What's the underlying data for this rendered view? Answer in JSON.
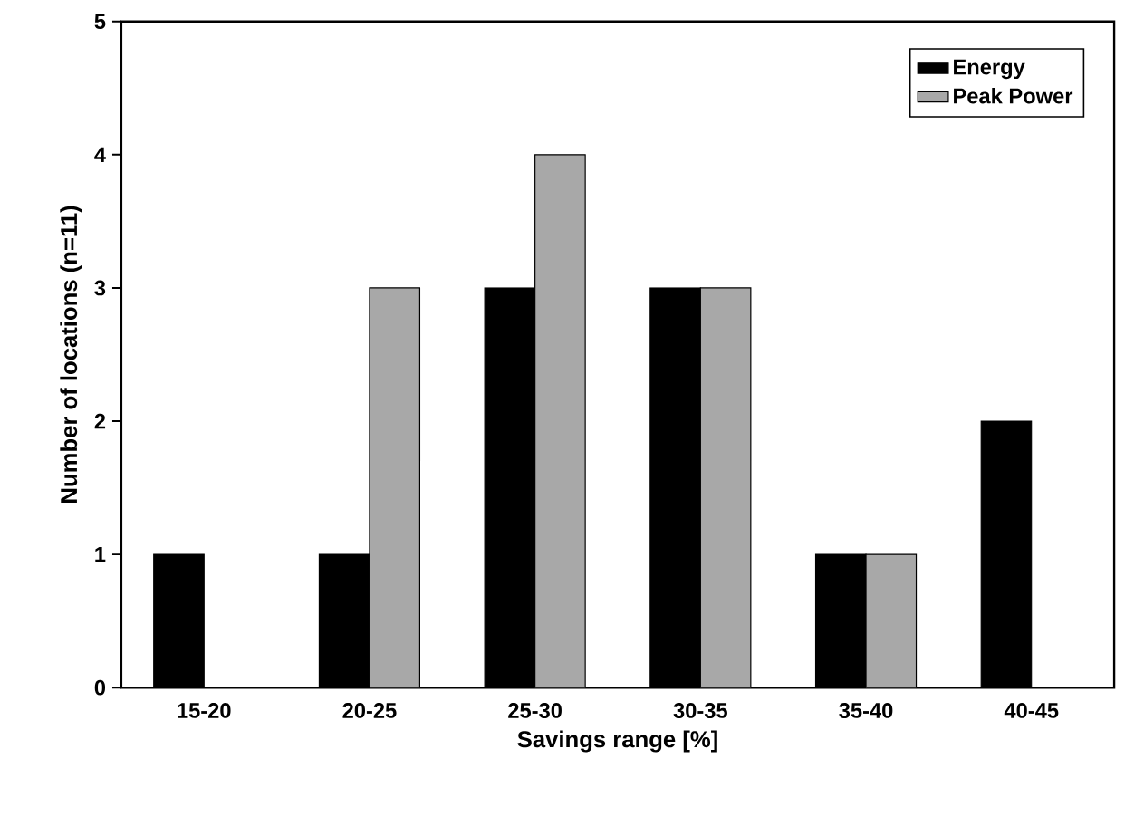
{
  "chart_data": {
    "type": "bar",
    "xlabel": "Savings range [%]",
    "ylabel": "Number of locations (n=11)",
    "categories": [
      "15-20",
      "20-25",
      "25-30",
      "30-35",
      "35-40",
      "40-45"
    ],
    "series": [
      {
        "name": "Energy",
        "color": "#000000",
        "values": [
          1,
          1,
          3,
          3,
          1,
          2
        ]
      },
      {
        "name": "Peak Power",
        "color": "#a8a8a8",
        "values": [
          0,
          3,
          4,
          3,
          1,
          0
        ]
      }
    ],
    "ylim": [
      0,
      5
    ],
    "yticks": [
      0,
      1,
      2,
      3,
      4,
      5
    ],
    "legend": "top right"
  }
}
